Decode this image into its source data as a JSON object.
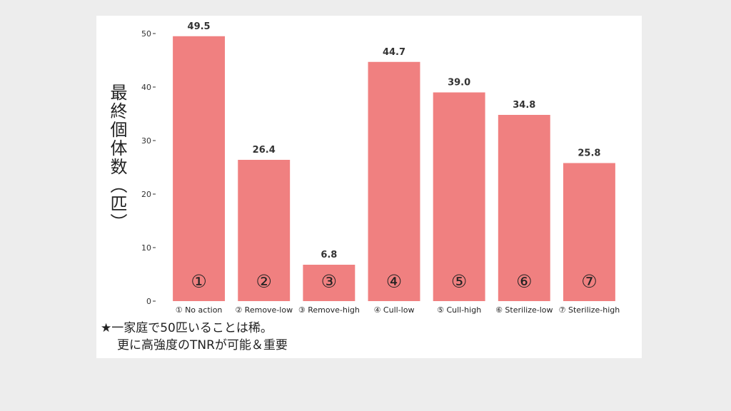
{
  "chart_data": {
    "type": "bar",
    "categories": [
      "① No action",
      "② Remove-low",
      "③ Remove-high",
      "④ Cull-low",
      "⑤ Cull-high",
      "⑥ Sterilize-low",
      "⑦ Sterilize-high"
    ],
    "values": [
      49.5,
      26.4,
      6.8,
      44.7,
      39.0,
      34.8,
      25.8
    ],
    "value_labels": [
      "49.5",
      "26.4",
      "6.8",
      "44.7",
      "39.0",
      "34.8",
      "25.8"
    ],
    "bar_marks": [
      "①",
      "②",
      "③",
      "④",
      "⑤",
      "⑥",
      "⑦"
    ],
    "ylabel": "最終個体数（匹）",
    "yticks": [
      0,
      10,
      20,
      30,
      40,
      50
    ],
    "ylim": [
      0,
      52
    ],
    "bar_color": "#f08080",
    "grid": false,
    "legend": "none"
  },
  "note": {
    "line1": "★一家庭で50匹いることは稀。",
    "line2": "更に高強度のTNRが可能＆重要"
  }
}
